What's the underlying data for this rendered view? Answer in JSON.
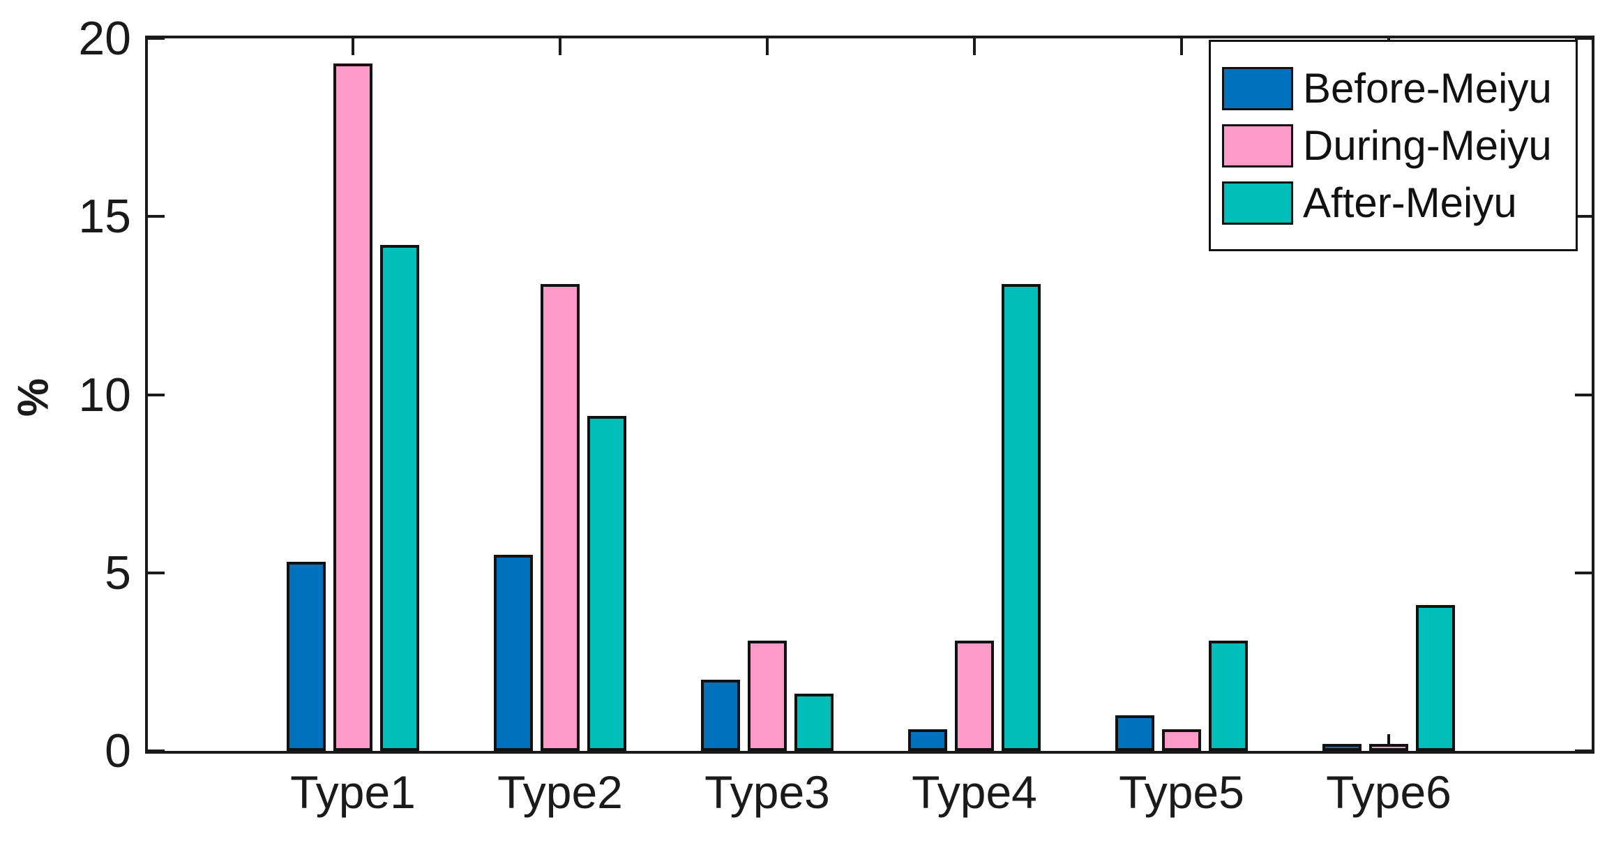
{
  "chart_data": {
    "type": "bar",
    "title": "",
    "xlabel": "",
    "ylabel": "%",
    "ylim": [
      0,
      20
    ],
    "yticks": [
      "0",
      "5",
      "10",
      "15",
      "20"
    ],
    "grid": false,
    "legend_position": "top-right-inside",
    "axis_color": "#1a1a1a",
    "categories": [
      "Type1",
      "Type2",
      "Type3",
      "Type4",
      "Type5",
      "Type6"
    ],
    "series": [
      {
        "name": "Before-Meiyu",
        "color": "#0072BD",
        "values": [
          5.3,
          5.5,
          2.0,
          0.6,
          1.0,
          0.2
        ]
      },
      {
        "name": "During-Meiyu",
        "color": "#FC9BC8",
        "values": [
          19.3,
          13.1,
          3.1,
          3.1,
          0.6,
          0.2
        ]
      },
      {
        "name": "After-Meiyu",
        "color": "#00BFBB",
        "values": [
          14.2,
          9.4,
          1.6,
          13.1,
          3.1,
          4.1
        ]
      }
    ],
    "error_whisker": {
      "category": "Type6",
      "series": "During-Meiyu",
      "from": 0.2,
      "to": 0.42
    }
  }
}
